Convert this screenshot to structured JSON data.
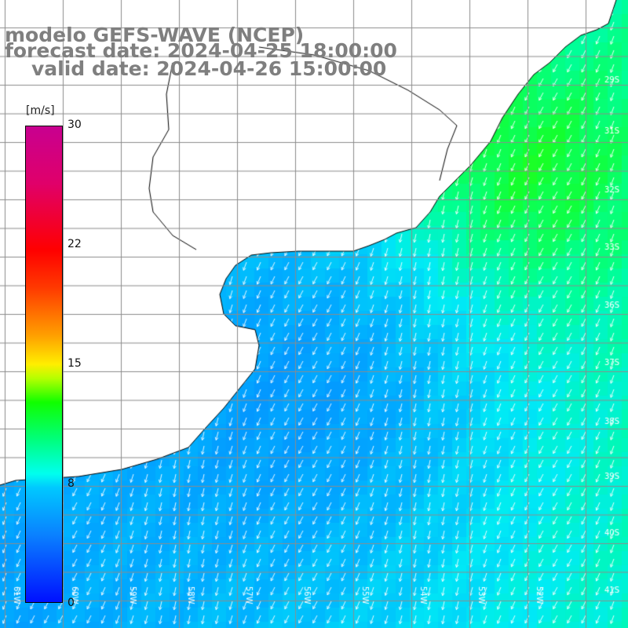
{
  "title": {
    "line1": "modelo GEFS-WAVE (NCEP)",
    "line2": "forecast date: 2024-04-25 18:00:00",
    "line3": "valid date: 2024-04-26 15:00:00"
  },
  "legend": {
    "unit": "[m/s]",
    "ticks": [
      "30",
      "22",
      "15",
      "8",
      "0"
    ],
    "values": [
      30,
      22,
      15,
      8,
      0
    ],
    "colors": {
      "low": "#0010ff",
      "mid_low": "#00c8ff",
      "mid": "#10ff00",
      "high": "#ffee00",
      "very_high": "#ff0000",
      "max": "#c80090"
    }
  },
  "map": {
    "lat_labels": [
      "29S",
      "31S",
      "32S",
      "33S",
      "36S",
      "37S",
      "38S",
      "39S",
      "40S",
      "41S"
    ],
    "lon_labels": [
      "61W",
      "60W",
      "59W",
      "58W",
      "57W",
      "56W",
      "55W",
      "54W",
      "53W",
      "52W"
    ],
    "land_color": "#ffffff",
    "grid_color": "#8c8c8c",
    "arrow_color": "#ffffff",
    "coast_color": "#000000"
  }
}
